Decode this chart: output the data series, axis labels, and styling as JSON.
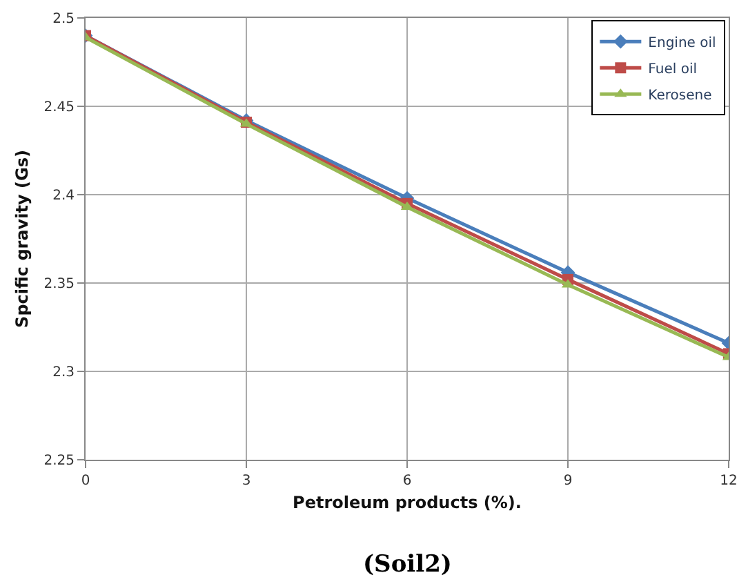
{
  "chart_data": {
    "type": "line",
    "xlabel": "Petroleum products (%).",
    "ylabel": "Spcific gravity (Gs)",
    "annotations": [
      "(Soil2)"
    ],
    "x": [
      0,
      3,
      6,
      9,
      12
    ],
    "xlim": [
      0,
      12
    ],
    "xticks": [
      0,
      3,
      6,
      9,
      12
    ],
    "ylim": [
      2.25,
      2.5
    ],
    "yticks": [
      2.25,
      2.3,
      2.35,
      2.4,
      2.45,
      2.5
    ],
    "grid": true,
    "legend": "top right",
    "line_style": "solid",
    "series": [
      {
        "name": "Engine oil",
        "color": "#4a7ebb",
        "marker": "diamond",
        "values": [
          2.49,
          2.442,
          2.398,
          2.356,
          2.316
        ]
      },
      {
        "name": "Fuel oil",
        "color": "#be4b48",
        "marker": "square",
        "values": [
          2.49,
          2.441,
          2.395,
          2.352,
          2.31
        ]
      },
      {
        "name": "Kerosene",
        "color": "#98b954",
        "marker": "triangle",
        "values": [
          2.489,
          2.44,
          2.393,
          2.349,
          2.308
        ]
      }
    ]
  }
}
